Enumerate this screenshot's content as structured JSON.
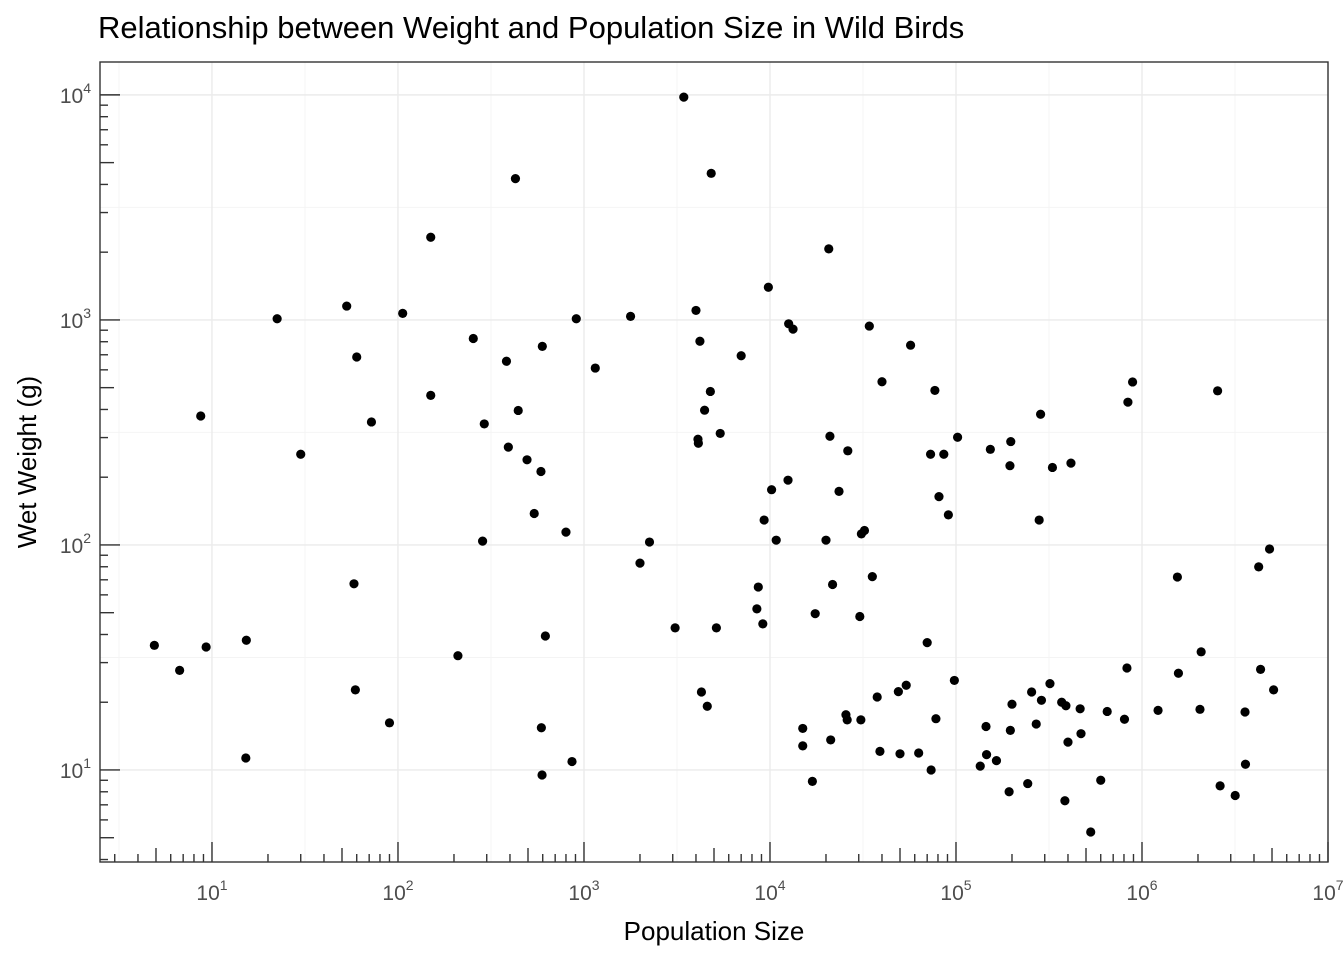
{
  "chart_data": {
    "type": "scatter",
    "title": "Relationship between Weight and Population Size in Wild Birds",
    "xlabel": "Population Size",
    "ylabel": "Wet Weight (g)",
    "x_scale": "log10",
    "y_scale": "log10",
    "xlim": [
      2.5,
      10000000
    ],
    "ylim": [
      3.9,
      14000
    ],
    "x_ticks": [
      {
        "value": 10,
        "base": "10",
        "exp": "1"
      },
      {
        "value": 100,
        "base": "10",
        "exp": "2"
      },
      {
        "value": 1000,
        "base": "10",
        "exp": "3"
      },
      {
        "value": 10000,
        "base": "10",
        "exp": "4"
      },
      {
        "value": 100000,
        "base": "10",
        "exp": "5"
      },
      {
        "value": 1000000,
        "base": "10",
        "exp": "6"
      },
      {
        "value": 10000000,
        "base": "10",
        "exp": "7"
      }
    ],
    "y_ticks": [
      {
        "value": 10,
        "base": "10",
        "exp": "1"
      },
      {
        "value": 100,
        "base": "10",
        "exp": "2"
      },
      {
        "value": 1000,
        "base": "10",
        "exp": "3"
      },
      {
        "value": 10000,
        "base": "10",
        "exp": "4"
      }
    ],
    "grid": true,
    "point_color": "#000000",
    "points": [
      {
        "x": 4.9,
        "y": 35.8
      },
      {
        "x": 6.7,
        "y": 27.7
      },
      {
        "x": 8.7,
        "y": 374
      },
      {
        "x": 9.3,
        "y": 35.2
      },
      {
        "x": 15.3,
        "y": 37.7
      },
      {
        "x": 15.2,
        "y": 11.3
      },
      {
        "x": 22.4,
        "y": 1012
      },
      {
        "x": 30,
        "y": 253
      },
      {
        "x": 53,
        "y": 1152
      },
      {
        "x": 58,
        "y": 67.2
      },
      {
        "x": 59,
        "y": 22.7
      },
      {
        "x": 60,
        "y": 684
      },
      {
        "x": 72,
        "y": 352
      },
      {
        "x": 90,
        "y": 16.2
      },
      {
        "x": 106,
        "y": 1069
      },
      {
        "x": 150,
        "y": 2330
      },
      {
        "x": 150,
        "y": 462
      },
      {
        "x": 210,
        "y": 32.2
      },
      {
        "x": 254,
        "y": 827
      },
      {
        "x": 285,
        "y": 104
      },
      {
        "x": 291,
        "y": 345
      },
      {
        "x": 383,
        "y": 655
      },
      {
        "x": 392,
        "y": 272
      },
      {
        "x": 428,
        "y": 4245
      },
      {
        "x": 443,
        "y": 396
      },
      {
        "x": 494,
        "y": 239
      },
      {
        "x": 540,
        "y": 138
      },
      {
        "x": 587,
        "y": 212
      },
      {
        "x": 597,
        "y": 763
      },
      {
        "x": 590,
        "y": 15.4
      },
      {
        "x": 595,
        "y": 9.5
      },
      {
        "x": 620,
        "y": 39.4
      },
      {
        "x": 800,
        "y": 114
      },
      {
        "x": 862,
        "y": 10.9
      },
      {
        "x": 909,
        "y": 1012
      },
      {
        "x": 1150,
        "y": 611
      },
      {
        "x": 1780,
        "y": 1037
      },
      {
        "x": 2000,
        "y": 83
      },
      {
        "x": 2250,
        "y": 103
      },
      {
        "x": 3090,
        "y": 42.8
      },
      {
        "x": 3440,
        "y": 9774
      },
      {
        "x": 4000,
        "y": 1102
      },
      {
        "x": 4100,
        "y": 295
      },
      {
        "x": 4120,
        "y": 283
      },
      {
        "x": 4200,
        "y": 804
      },
      {
        "x": 4280,
        "y": 22.2
      },
      {
        "x": 4450,
        "y": 397
      },
      {
        "x": 4600,
        "y": 19.2
      },
      {
        "x": 4780,
        "y": 481
      },
      {
        "x": 4830,
        "y": 4481
      },
      {
        "x": 5150,
        "y": 42.8
      },
      {
        "x": 5400,
        "y": 313
      },
      {
        "x": 7000,
        "y": 693
      },
      {
        "x": 8500,
        "y": 52
      },
      {
        "x": 8650,
        "y": 65
      },
      {
        "x": 9150,
        "y": 44.6
      },
      {
        "x": 9300,
        "y": 129
      },
      {
        "x": 9800,
        "y": 1397
      },
      {
        "x": 10200,
        "y": 176
      },
      {
        "x": 10800,
        "y": 105
      },
      {
        "x": 12500,
        "y": 194
      },
      {
        "x": 12600,
        "y": 961
      },
      {
        "x": 13300,
        "y": 910
      },
      {
        "x": 15000,
        "y": 15.3
      },
      {
        "x": 15000,
        "y": 12.8
      },
      {
        "x": 16900,
        "y": 8.9
      },
      {
        "x": 17500,
        "y": 49.5
      },
      {
        "x": 20000,
        "y": 105
      },
      {
        "x": 20700,
        "y": 2069
      },
      {
        "x": 21000,
        "y": 304
      },
      {
        "x": 21200,
        "y": 13.6
      },
      {
        "x": 21700,
        "y": 66.7
      },
      {
        "x": 23500,
        "y": 173
      },
      {
        "x": 25600,
        "y": 17.6
      },
      {
        "x": 26000,
        "y": 16.7
      },
      {
        "x": 26200,
        "y": 262
      },
      {
        "x": 30400,
        "y": 48.1
      },
      {
        "x": 30800,
        "y": 16.7
      },
      {
        "x": 31000,
        "y": 112
      },
      {
        "x": 32200,
        "y": 116
      },
      {
        "x": 34200,
        "y": 939
      },
      {
        "x": 35500,
        "y": 72.3
      },
      {
        "x": 37700,
        "y": 21.1
      },
      {
        "x": 39000,
        "y": 12.1
      },
      {
        "x": 40000,
        "y": 531
      },
      {
        "x": 49000,
        "y": 22.3
      },
      {
        "x": 50000,
        "y": 11.8
      },
      {
        "x": 54000,
        "y": 23.8
      },
      {
        "x": 57000,
        "y": 772
      },
      {
        "x": 63000,
        "y": 11.9
      },
      {
        "x": 70000,
        "y": 36.8
      },
      {
        "x": 73000,
        "y": 253
      },
      {
        "x": 73500,
        "y": 10.0
      },
      {
        "x": 77000,
        "y": 486
      },
      {
        "x": 78000,
        "y": 16.9
      },
      {
        "x": 81000,
        "y": 164
      },
      {
        "x": 86000,
        "y": 253
      },
      {
        "x": 91000,
        "y": 136
      },
      {
        "x": 98000,
        "y": 25.0
      },
      {
        "x": 102000,
        "y": 301
      },
      {
        "x": 135000,
        "y": 10.4
      },
      {
        "x": 145000,
        "y": 15.6
      },
      {
        "x": 146000,
        "y": 11.7
      },
      {
        "x": 153000,
        "y": 266
      },
      {
        "x": 165000,
        "y": 11.0
      },
      {
        "x": 193000,
        "y": 8.0
      },
      {
        "x": 195000,
        "y": 225
      },
      {
        "x": 196000,
        "y": 15.0
      },
      {
        "x": 197000,
        "y": 288
      },
      {
        "x": 200000,
        "y": 19.6
      },
      {
        "x": 243000,
        "y": 8.7
      },
      {
        "x": 255000,
        "y": 22.2
      },
      {
        "x": 270000,
        "y": 16.0
      },
      {
        "x": 280000,
        "y": 129
      },
      {
        "x": 285000,
        "y": 381
      },
      {
        "x": 288000,
        "y": 20.4
      },
      {
        "x": 320000,
        "y": 24.2
      },
      {
        "x": 330000,
        "y": 221
      },
      {
        "x": 370000,
        "y": 20.0
      },
      {
        "x": 385000,
        "y": 7.3
      },
      {
        "x": 390000,
        "y": 19.3
      },
      {
        "x": 400000,
        "y": 13.3
      },
      {
        "x": 415000,
        "y": 231
      },
      {
        "x": 465000,
        "y": 18.7
      },
      {
        "x": 470000,
        "y": 14.5
      },
      {
        "x": 530000,
        "y": 5.3
      },
      {
        "x": 600000,
        "y": 9.0
      },
      {
        "x": 650000,
        "y": 18.2
      },
      {
        "x": 805000,
        "y": 16.8
      },
      {
        "x": 830000,
        "y": 28.4
      },
      {
        "x": 840000,
        "y": 431
      },
      {
        "x": 890000,
        "y": 530
      },
      {
        "x": 1220000,
        "y": 18.4
      },
      {
        "x": 1550000,
        "y": 72
      },
      {
        "x": 1570000,
        "y": 26.9
      },
      {
        "x": 2050000,
        "y": 18.6
      },
      {
        "x": 2080000,
        "y": 33.5
      },
      {
        "x": 2550000,
        "y": 484
      },
      {
        "x": 2630000,
        "y": 8.5
      },
      {
        "x": 3170000,
        "y": 7.7
      },
      {
        "x": 3580000,
        "y": 18.1
      },
      {
        "x": 3600000,
        "y": 10.6
      },
      {
        "x": 4240000,
        "y": 79.9
      },
      {
        "x": 4340000,
        "y": 28.0
      },
      {
        "x": 4850000,
        "y": 95.9
      },
      {
        "x": 5100000,
        "y": 22.7
      }
    ]
  }
}
